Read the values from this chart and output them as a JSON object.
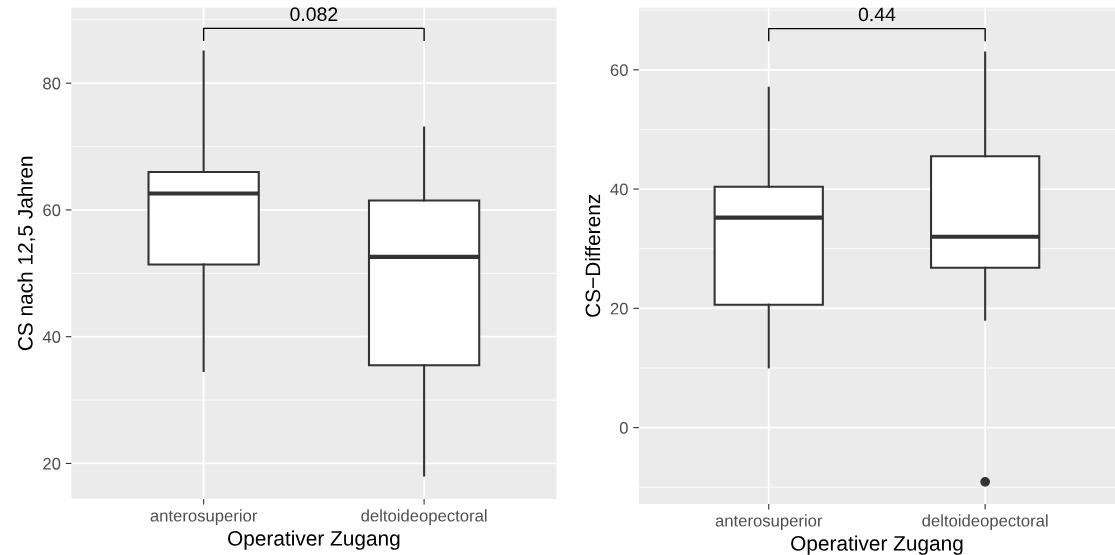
{
  "chart_data": [
    {
      "type": "box",
      "categories": [
        "anterosuperior",
        "deltoideopectoral"
      ],
      "xlabel": "Operativer Zugang",
      "ylabel": "CS nach 12,5 Jahren",
      "ylim": [
        14.4,
        91.9
      ],
      "yticks": [
        20,
        40,
        60,
        80
      ],
      "grid": true,
      "annotations": [
        "0.082"
      ],
      "boxes": [
        {
          "low": 34.6,
          "q1": 51.4,
          "median": 62.6,
          "q3": 66.0,
          "high": 85.0
        },
        {
          "low": 18.1,
          "q1": 35.5,
          "median": 52.6,
          "q3": 61.5,
          "high": 73.0
        }
      ]
    },
    {
      "type": "box",
      "categories": [
        "anterosuperior",
        "deltoideopectoral"
      ],
      "xlabel": "Operativer Zugang",
      "ylabel": "CS−Differenz",
      "ylim": [
        -12.8,
        70.4
      ],
      "yticks": [
        0,
        20,
        40,
        60
      ],
      "grid": true,
      "annotations": [
        "0.44"
      ],
      "boxes": [
        {
          "low": 10.1,
          "q1": 20.6,
          "median": 35.2,
          "q3": 40.4,
          "high": 57.0
        },
        {
          "low": 18.1,
          "q1": 26.8,
          "median": 32.0,
          "q3": 45.5,
          "high": 62.9,
          "outliers": [
            -9.1
          ]
        }
      ]
    }
  ]
}
